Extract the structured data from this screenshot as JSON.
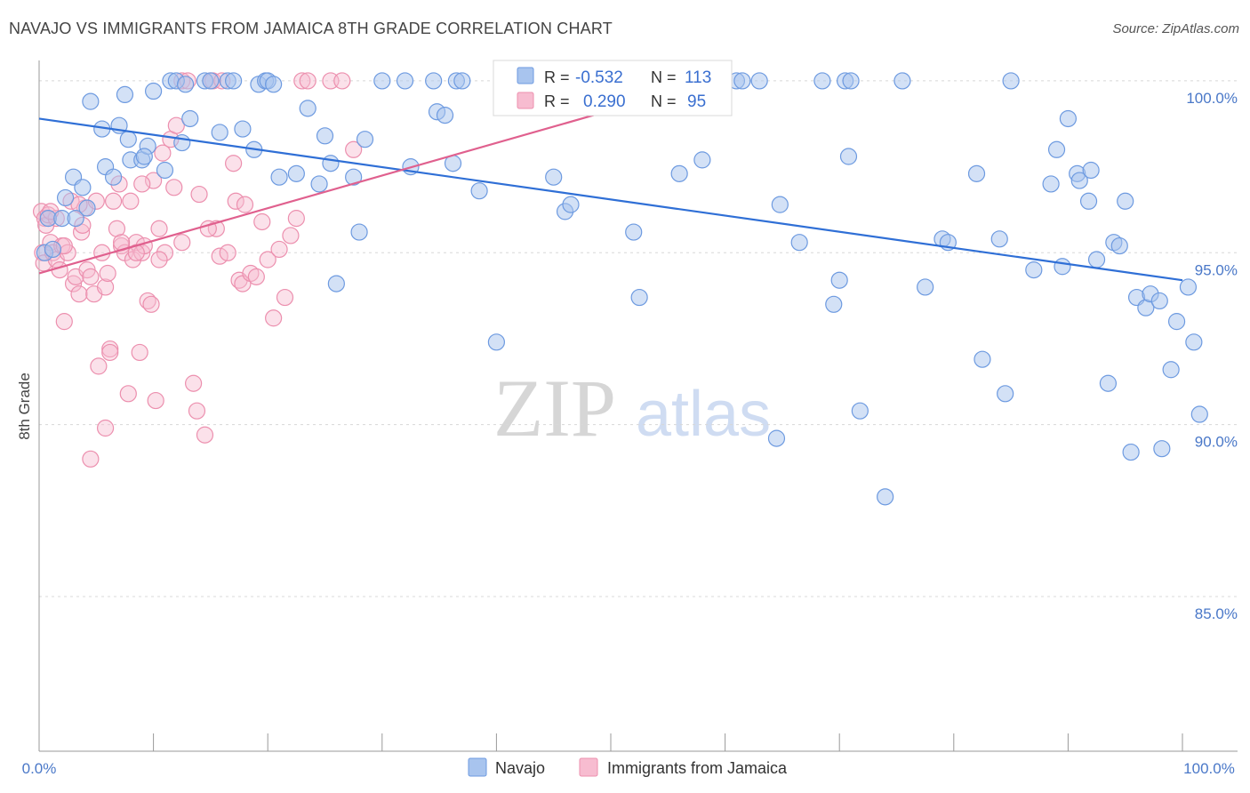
{
  "title": "NAVAJO VS IMMIGRANTS FROM JAMAICA 8TH GRADE CORRELATION CHART",
  "source": "Source: ZipAtlas.com",
  "watermark": {
    "zip": "ZIP",
    "atlas": "atlas"
  },
  "stats": {
    "r_label": "R =",
    "n_label": "N =",
    "navajo": {
      "r": "-0.532",
      "n": "113"
    },
    "jamaica": {
      "r": "0.290",
      "n": "95"
    }
  },
  "colors": {
    "navajo_fill": "#a8c4ee",
    "navajo_stroke": "#6d9ae0",
    "navajo_line": "#2f6fd6",
    "jamaica_fill": "#f7bcd0",
    "jamaica_stroke": "#ec8fae",
    "jamaica_line": "#e0608e",
    "tick_text": "#4a78c8",
    "grid": "#d8d8d8"
  },
  "chart_data": {
    "type": "scatter",
    "title": "NAVAJO VS IMMIGRANTS FROM JAMAICA 8TH GRADE CORRELATION CHART",
    "xlabel": "",
    "ylabel": "8th Grade",
    "xlim": [
      0,
      100
    ],
    "ylim": [
      80.5,
      100.8
    ],
    "x_tick_labels": [
      "0.0%",
      "100.0%"
    ],
    "y_ticks": [
      85,
      90,
      95,
      100
    ],
    "y_tick_labels": [
      "85.0%",
      "90.0%",
      "95.0%",
      "100.0%"
    ],
    "grid": true,
    "legend_position": "bottom-center",
    "series": [
      {
        "name": "Navajo",
        "r": -0.532,
        "n": 113,
        "trend": {
          "x0": 0,
          "y0": 98.9,
          "x1": 100,
          "y1": 94.2
        },
        "points": [
          [
            0.5,
            95.0
          ],
          [
            0.8,
            96.0
          ],
          [
            1.2,
            95.1
          ],
          [
            2.0,
            96.0
          ],
          [
            2.3,
            96.6
          ],
          [
            3.0,
            97.2
          ],
          [
            3.2,
            96.0
          ],
          [
            3.8,
            96.9
          ],
          [
            4.2,
            96.3
          ],
          [
            4.5,
            99.4
          ],
          [
            5.5,
            98.6
          ],
          [
            5.8,
            97.5
          ],
          [
            6.5,
            97.2
          ],
          [
            7.0,
            98.7
          ],
          [
            7.5,
            99.6
          ],
          [
            7.8,
            98.3
          ],
          [
            8.0,
            97.7
          ],
          [
            9.0,
            97.7
          ],
          [
            9.5,
            98.1
          ],
          [
            9.2,
            97.8
          ],
          [
            10.0,
            99.7
          ],
          [
            11.0,
            97.4
          ],
          [
            11.5,
            100.0
          ],
          [
            12.0,
            100.0
          ],
          [
            12.5,
            98.2
          ],
          [
            12.8,
            99.9
          ],
          [
            13.2,
            98.9
          ],
          [
            14.5,
            100.0
          ],
          [
            15.0,
            100.0
          ],
          [
            15.8,
            98.5
          ],
          [
            16.5,
            100.0
          ],
          [
            17.0,
            100.0
          ],
          [
            17.8,
            98.6
          ],
          [
            18.8,
            98.0
          ],
          [
            19.2,
            99.9
          ],
          [
            19.8,
            100.0
          ],
          [
            20.0,
            100.0
          ],
          [
            20.5,
            99.9
          ],
          [
            21.0,
            97.2
          ],
          [
            22.5,
            97.3
          ],
          [
            23.5,
            99.2
          ],
          [
            24.5,
            97.0
          ],
          [
            25.0,
            98.4
          ],
          [
            25.5,
            97.6
          ],
          [
            26.0,
            94.1
          ],
          [
            27.5,
            97.2
          ],
          [
            28.0,
            95.6
          ],
          [
            28.5,
            98.3
          ],
          [
            30.0,
            100.0
          ],
          [
            32.0,
            100.0
          ],
          [
            32.5,
            97.5
          ],
          [
            34.5,
            100.0
          ],
          [
            34.8,
            99.1
          ],
          [
            35.5,
            99.0
          ],
          [
            36.2,
            97.6
          ],
          [
            36.5,
            100.0
          ],
          [
            37.0,
            100.0
          ],
          [
            38.5,
            96.8
          ],
          [
            40.0,
            92.4
          ],
          [
            45.0,
            97.2
          ],
          [
            46.0,
            96.2
          ],
          [
            46.5,
            96.4
          ],
          [
            49.5,
            100.0
          ],
          [
            50.0,
            100.0
          ],
          [
            52.0,
            95.6
          ],
          [
            52.5,
            93.7
          ],
          [
            53.0,
            100.0
          ],
          [
            54.5,
            100.0
          ],
          [
            56.0,
            97.3
          ],
          [
            58.0,
            97.7
          ],
          [
            61.0,
            100.0
          ],
          [
            61.5,
            100.0
          ],
          [
            63.0,
            100.0
          ],
          [
            64.5,
            89.6
          ],
          [
            64.8,
            96.4
          ],
          [
            66.5,
            95.3
          ],
          [
            68.5,
            100.0
          ],
          [
            69.5,
            93.5
          ],
          [
            70.5,
            100.0
          ],
          [
            70.0,
            94.2
          ],
          [
            70.8,
            97.8
          ],
          [
            71.0,
            100.0
          ],
          [
            71.8,
            90.4
          ],
          [
            74.0,
            87.9
          ],
          [
            75.5,
            100.0
          ],
          [
            77.5,
            94.0
          ],
          [
            79.0,
            95.4
          ],
          [
            79.5,
            95.3
          ],
          [
            82.0,
            97.3
          ],
          [
            82.5,
            91.9
          ],
          [
            84.0,
            95.4
          ],
          [
            84.5,
            90.9
          ],
          [
            85.0,
            100.0
          ],
          [
            87.0,
            94.5
          ],
          [
            88.5,
            97.0
          ],
          [
            89.0,
            98.0
          ],
          [
            89.5,
            94.6
          ],
          [
            90.0,
            98.9
          ],
          [
            90.8,
            97.3
          ],
          [
            91.0,
            97.1
          ],
          [
            91.8,
            96.5
          ],
          [
            92.0,
            97.4
          ],
          [
            92.5,
            94.8
          ],
          [
            93.5,
            91.2
          ],
          [
            94.0,
            95.3
          ],
          [
            94.5,
            95.2
          ],
          [
            95.0,
            96.5
          ],
          [
            95.5,
            89.2
          ],
          [
            96.0,
            93.7
          ],
          [
            96.8,
            93.4
          ],
          [
            97.2,
            93.8
          ],
          [
            98.0,
            93.6
          ],
          [
            98.2,
            89.3
          ],
          [
            99.0,
            91.6
          ],
          [
            99.5,
            93.0
          ],
          [
            100.5,
            94.0
          ],
          [
            101.0,
            92.4
          ],
          [
            101.5,
            90.3
          ],
          [
            47.5,
            100.0
          ]
        ]
      },
      {
        "name": "Immigrants from Jamaica",
        "r": 0.29,
        "n": 95,
        "trend": {
          "x0": 0,
          "y0": 94.4,
          "x1": 48.5,
          "y1": 99.0
        },
        "points": [
          [
            0.2,
            96.2
          ],
          [
            0.3,
            95.0
          ],
          [
            0.4,
            94.7
          ],
          [
            0.5,
            96.0
          ],
          [
            0.6,
            95.8
          ],
          [
            0.8,
            96.1
          ],
          [
            1.0,
            95.3
          ],
          [
            1.2,
            95.0
          ],
          [
            1.5,
            94.8
          ],
          [
            1.5,
            96.0
          ],
          [
            1.8,
            94.5
          ],
          [
            2.0,
            95.2
          ],
          [
            2.2,
            93.0
          ],
          [
            2.5,
            95.0
          ],
          [
            2.8,
            96.5
          ],
          [
            3.0,
            94.1
          ],
          [
            3.2,
            94.3
          ],
          [
            3.5,
            93.8
          ],
          [
            3.7,
            95.6
          ],
          [
            3.8,
            95.8
          ],
          [
            4.0,
            96.3
          ],
          [
            4.2,
            94.5
          ],
          [
            4.5,
            94.3
          ],
          [
            4.8,
            93.8
          ],
          [
            5.0,
            96.5
          ],
          [
            5.2,
            91.7
          ],
          [
            5.5,
            95.0
          ],
          [
            5.8,
            94.0
          ],
          [
            6.0,
            94.4
          ],
          [
            6.2,
            92.2
          ],
          [
            6.5,
            96.5
          ],
          [
            6.8,
            95.7
          ],
          [
            7.0,
            97.0
          ],
          [
            7.2,
            95.2
          ],
          [
            7.5,
            95.0
          ],
          [
            7.8,
            90.9
          ],
          [
            8.0,
            96.5
          ],
          [
            8.2,
            94.8
          ],
          [
            8.5,
            95.3
          ],
          [
            8.8,
            92.1
          ],
          [
            9.0,
            95.0
          ],
          [
            9.2,
            95.2
          ],
          [
            9.5,
            93.6
          ],
          [
            9.8,
            93.5
          ],
          [
            10.0,
            97.1
          ],
          [
            10.2,
            90.7
          ],
          [
            10.5,
            95.7
          ],
          [
            10.8,
            97.9
          ],
          [
            11.0,
            95.0
          ],
          [
            11.5,
            98.3
          ],
          [
            11.8,
            96.9
          ],
          [
            12.0,
            98.7
          ],
          [
            12.5,
            100.0
          ],
          [
            13.0,
            100.0
          ],
          [
            13.5,
            91.2
          ],
          [
            13.8,
            90.4
          ],
          [
            14.0,
            96.7
          ],
          [
            14.5,
            89.7
          ],
          [
            15.0,
            100.0
          ],
          [
            15.2,
            100.0
          ],
          [
            15.5,
            95.7
          ],
          [
            15.8,
            94.9
          ],
          [
            16.0,
            100.0
          ],
          [
            16.5,
            95.0
          ],
          [
            17.0,
            97.6
          ],
          [
            17.2,
            96.5
          ],
          [
            17.5,
            94.2
          ],
          [
            17.8,
            94.1
          ],
          [
            18.0,
            96.4
          ],
          [
            18.5,
            94.4
          ],
          [
            19.0,
            94.3
          ],
          [
            19.5,
            95.9
          ],
          [
            20.0,
            94.8
          ],
          [
            20.5,
            93.1
          ],
          [
            21.0,
            95.1
          ],
          [
            21.5,
            93.7
          ],
          [
            22.0,
            95.5
          ],
          [
            22.5,
            96.0
          ],
          [
            23.0,
            100.0
          ],
          [
            23.5,
            100.0
          ],
          [
            25.5,
            100.0
          ],
          [
            26.5,
            100.0
          ],
          [
            27.5,
            98.0
          ],
          [
            9.0,
            97.0
          ],
          [
            4.5,
            89.0
          ],
          [
            5.8,
            89.9
          ],
          [
            6.2,
            92.1
          ],
          [
            2.2,
            95.2
          ],
          [
            1.0,
            96.2
          ],
          [
            3.5,
            96.4
          ],
          [
            7.2,
            95.3
          ],
          [
            8.5,
            95.0
          ],
          [
            10.5,
            94.8
          ],
          [
            12.5,
            95.3
          ],
          [
            14.8,
            95.7
          ]
        ]
      }
    ]
  }
}
